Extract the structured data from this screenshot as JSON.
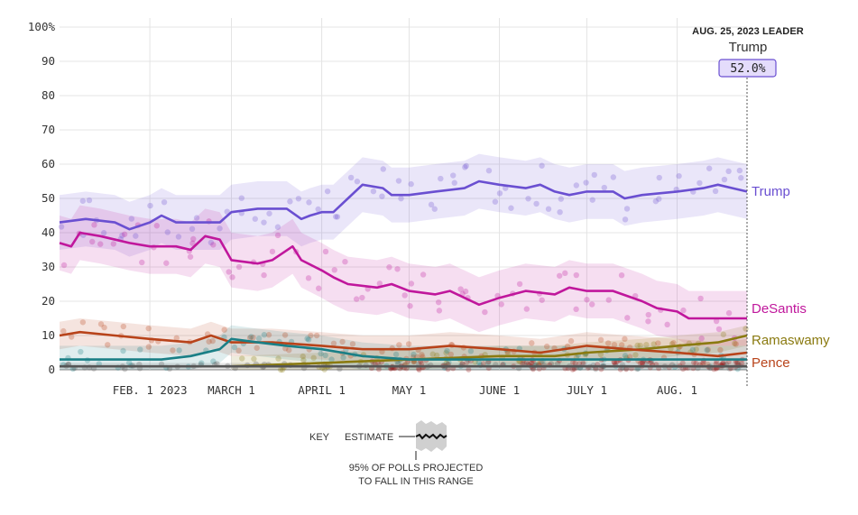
{
  "leader": {
    "title": "AUG. 25, 2023 LEADER",
    "name": "Trump",
    "value": "52.0%"
  },
  "key": {
    "label": "KEY",
    "estimate_label": "ESTIMATE",
    "range_line1": "95% OF POLLS PROJECTED",
    "range_line2": "TO FALL IN THIS RANGE"
  },
  "colors": {
    "trump": "#6a4fd1",
    "desantis": "#c0179c",
    "ramaswamy": "#8a7a10",
    "pence": "#b8431a",
    "teal": "#1a7f86",
    "grey": "#555555",
    "darkred": "#9a1e1e"
  },
  "chart_data": {
    "type": "line",
    "title": "",
    "xlabel": "",
    "ylabel": "",
    "ylim": [
      0,
      100
    ],
    "y_ticks": [
      "100%",
      "90",
      "80",
      "70",
      "60",
      "50",
      "40",
      "30",
      "20",
      "10",
      "0"
    ],
    "x_ticks": [
      {
        "label": "FEB. 1 2023",
        "date": "2023-02-01"
      },
      {
        "label": "MARCH 1",
        "date": "2023-03-01"
      },
      {
        "label": "APRIL 1",
        "date": "2023-04-01"
      },
      {
        "label": "MAY 1",
        "date": "2023-05-01"
      },
      {
        "label": "JUNE 1",
        "date": "2023-06-01"
      },
      {
        "label": "JULY 1",
        "date": "2023-07-01"
      },
      {
        "label": "AUG. 1",
        "date": "2023-08-01"
      }
    ],
    "x_range": [
      "2023-01-01",
      "2023-08-25"
    ],
    "grid": true,
    "series": [
      {
        "name": "Trump",
        "key": "trump",
        "band": 8,
        "points": [
          [
            "2023-01-01",
            43
          ],
          [
            "2023-01-10",
            44
          ],
          [
            "2023-01-20",
            43
          ],
          [
            "2023-01-25",
            41
          ],
          [
            "2023-02-01",
            43
          ],
          [
            "2023-02-05",
            45
          ],
          [
            "2023-02-10",
            43
          ],
          [
            "2023-02-20",
            43
          ],
          [
            "2023-02-25",
            43
          ],
          [
            "2023-03-01",
            46
          ],
          [
            "2023-03-10",
            47
          ],
          [
            "2023-03-20",
            47
          ],
          [
            "2023-03-25",
            44
          ],
          [
            "2023-03-28",
            45
          ],
          [
            "2023-04-01",
            46
          ],
          [
            "2023-04-05",
            46
          ],
          [
            "2023-04-10",
            50
          ],
          [
            "2023-04-15",
            54
          ],
          [
            "2023-04-22",
            53
          ],
          [
            "2023-04-25",
            51
          ],
          [
            "2023-05-01",
            51
          ],
          [
            "2023-05-10",
            52
          ],
          [
            "2023-05-20",
            53
          ],
          [
            "2023-05-25",
            55
          ],
          [
            "2023-06-01",
            54
          ],
          [
            "2023-06-10",
            53
          ],
          [
            "2023-06-15",
            54
          ],
          [
            "2023-06-20",
            52
          ],
          [
            "2023-06-25",
            51
          ],
          [
            "2023-07-01",
            52
          ],
          [
            "2023-07-10",
            52
          ],
          [
            "2023-07-14",
            50
          ],
          [
            "2023-07-20",
            51
          ],
          [
            "2023-08-01",
            52
          ],
          [
            "2023-08-10",
            53
          ],
          [
            "2023-08-15",
            54
          ],
          [
            "2023-08-20",
            53
          ],
          [
            "2023-08-25",
            52
          ]
        ]
      },
      {
        "name": "DeSantis",
        "key": "desantis",
        "band": 8,
        "points": [
          [
            "2023-01-01",
            37
          ],
          [
            "2023-01-05",
            36
          ],
          [
            "2023-01-08",
            40
          ],
          [
            "2023-01-15",
            39
          ],
          [
            "2023-01-25",
            37
          ],
          [
            "2023-02-01",
            36
          ],
          [
            "2023-02-10",
            36
          ],
          [
            "2023-02-15",
            35
          ],
          [
            "2023-02-20",
            39
          ],
          [
            "2023-02-25",
            38
          ],
          [
            "2023-03-01",
            32
          ],
          [
            "2023-03-10",
            31
          ],
          [
            "2023-03-15",
            32
          ],
          [
            "2023-03-22",
            36
          ],
          [
            "2023-03-25",
            32
          ],
          [
            "2023-04-01",
            29
          ],
          [
            "2023-04-05",
            27
          ],
          [
            "2023-04-10",
            25
          ],
          [
            "2023-04-20",
            24
          ],
          [
            "2023-04-25",
            25
          ],
          [
            "2023-05-01",
            23
          ],
          [
            "2023-05-10",
            22
          ],
          [
            "2023-05-15",
            23
          ],
          [
            "2023-05-20",
            21
          ],
          [
            "2023-05-25",
            19
          ],
          [
            "2023-06-01",
            21
          ],
          [
            "2023-06-10",
            23
          ],
          [
            "2023-06-20",
            22
          ],
          [
            "2023-06-25",
            24
          ],
          [
            "2023-07-01",
            23
          ],
          [
            "2023-07-10",
            23
          ],
          [
            "2023-07-20",
            20
          ],
          [
            "2023-07-25",
            18
          ],
          [
            "2023-08-01",
            17
          ],
          [
            "2023-08-05",
            15
          ],
          [
            "2023-08-15",
            15
          ],
          [
            "2023-08-25",
            15
          ]
        ]
      },
      {
        "name": "Ramaswamy",
        "key": "ramaswamy",
        "band": 3,
        "points": [
          [
            "2023-03-01",
            1
          ],
          [
            "2023-04-01",
            2
          ],
          [
            "2023-05-01",
            3
          ],
          [
            "2023-06-01",
            4
          ],
          [
            "2023-06-20",
            4
          ],
          [
            "2023-07-01",
            5
          ],
          [
            "2023-07-20",
            6
          ],
          [
            "2023-08-01",
            7
          ],
          [
            "2023-08-15",
            8
          ],
          [
            "2023-08-25",
            10
          ]
        ]
      },
      {
        "name": "Pence",
        "key": "pence",
        "band": 4,
        "points": [
          [
            "2023-01-01",
            10
          ],
          [
            "2023-01-08",
            11
          ],
          [
            "2023-01-20",
            10
          ],
          [
            "2023-02-01",
            9
          ],
          [
            "2023-02-15",
            8
          ],
          [
            "2023-02-22",
            10
          ],
          [
            "2023-03-01",
            8
          ],
          [
            "2023-03-15",
            8
          ],
          [
            "2023-04-01",
            7
          ],
          [
            "2023-04-15",
            6
          ],
          [
            "2023-05-01",
            6
          ],
          [
            "2023-05-15",
            7
          ],
          [
            "2023-06-01",
            6
          ],
          [
            "2023-06-15",
            5
          ],
          [
            "2023-07-01",
            7
          ],
          [
            "2023-07-15",
            6
          ],
          [
            "2023-08-01",
            5
          ],
          [
            "2023-08-15",
            4
          ],
          [
            "2023-08-25",
            5
          ]
        ]
      },
      {
        "name": "",
        "key": "teal",
        "band": 4,
        "points": [
          [
            "2023-01-01",
            3
          ],
          [
            "2023-01-20",
            3
          ],
          [
            "2023-02-05",
            3
          ],
          [
            "2023-02-15",
            4
          ],
          [
            "2023-02-25",
            6
          ],
          [
            "2023-03-01",
            9
          ],
          [
            "2023-03-10",
            8
          ],
          [
            "2023-03-20",
            7
          ],
          [
            "2023-04-01",
            6
          ],
          [
            "2023-04-15",
            4
          ],
          [
            "2023-05-01",
            3
          ],
          [
            "2023-06-01",
            3
          ],
          [
            "2023-07-01",
            3
          ],
          [
            "2023-08-01",
            3
          ],
          [
            "2023-08-25",
            3
          ]
        ]
      },
      {
        "name": "",
        "key": "grey",
        "band": 1,
        "points": [
          [
            "2023-01-01",
            1
          ],
          [
            "2023-03-01",
            1
          ],
          [
            "2023-05-01",
            1
          ],
          [
            "2023-07-01",
            1
          ],
          [
            "2023-08-25",
            1
          ]
        ]
      }
    ]
  }
}
